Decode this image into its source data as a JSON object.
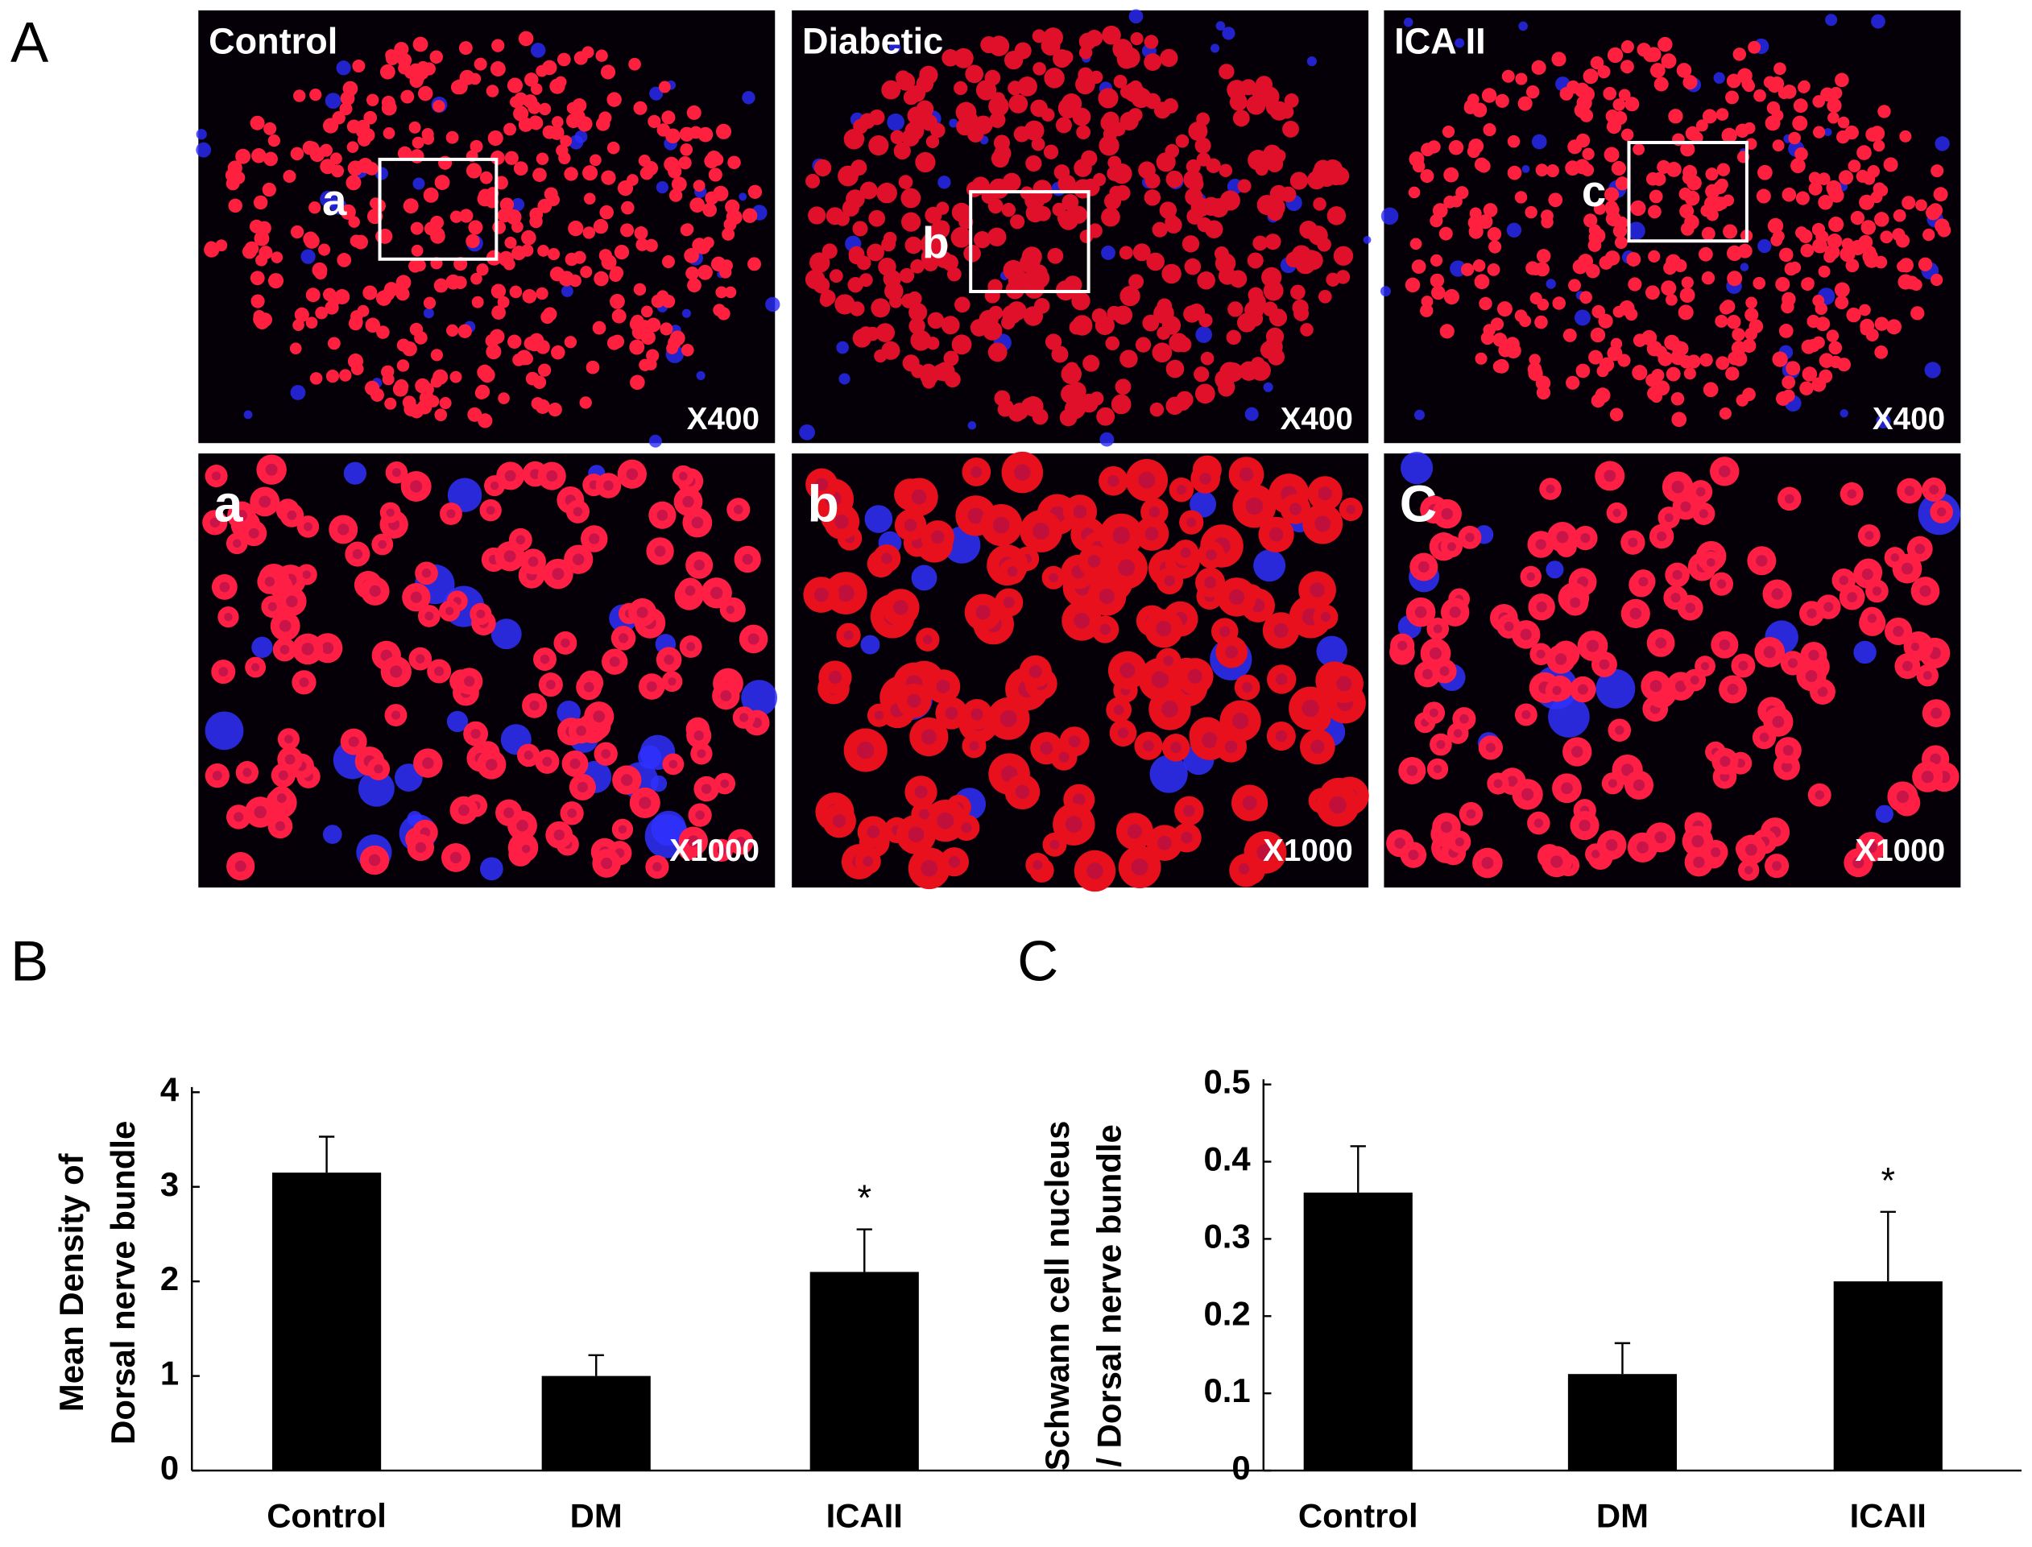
{
  "figure": {
    "panel_labels": [
      "A",
      "B",
      "C"
    ],
    "micrographs": [
      {
        "group": "Control",
        "zoom_label": "a",
        "magnification": "X400"
      },
      {
        "group": "Diabetic",
        "zoom_label": "b",
        "magnification": "X400"
      },
      {
        "group": "ICA II",
        "zoom_label": "c",
        "magnification": "X400"
      }
    ],
    "zoom_panels": [
      {
        "label": "a",
        "magnification": "X1000"
      },
      {
        "label": "b",
        "magnification": "X1000"
      },
      {
        "label": "C",
        "magnification": "X1000"
      }
    ]
  },
  "chart_data": [
    {
      "type": "bar",
      "ylabel": [
        "Mean Density of",
        "Dorsal nerve bundle"
      ],
      "categories": [
        "Control",
        "DM",
        "ICAII"
      ],
      "values": [
        3.15,
        1.0,
        2.1
      ],
      "errors": [
        0.38,
        0.22,
        0.45
      ],
      "significance": [
        null,
        null,
        "*"
      ],
      "color": "#000000",
      "ylim": [
        0,
        4
      ],
      "yticks": [
        0,
        1,
        2,
        3,
        4
      ]
    },
    {
      "type": "bar",
      "ylabel": [
        "Schwann cell nucleus",
        "/ Dorsal nerve bundle"
      ],
      "categories": [
        "Control",
        "DM",
        "ICAII"
      ],
      "values": [
        0.36,
        0.125,
        0.245
      ],
      "errors": [
        0.06,
        0.04,
        0.09
      ],
      "significance": [
        null,
        null,
        "*"
      ],
      "color": "#000000",
      "ylim": [
        0,
        0.5
      ],
      "yticks": [
        0,
        0.1,
        0.2,
        0.3,
        0.4,
        0.5
      ]
    }
  ]
}
